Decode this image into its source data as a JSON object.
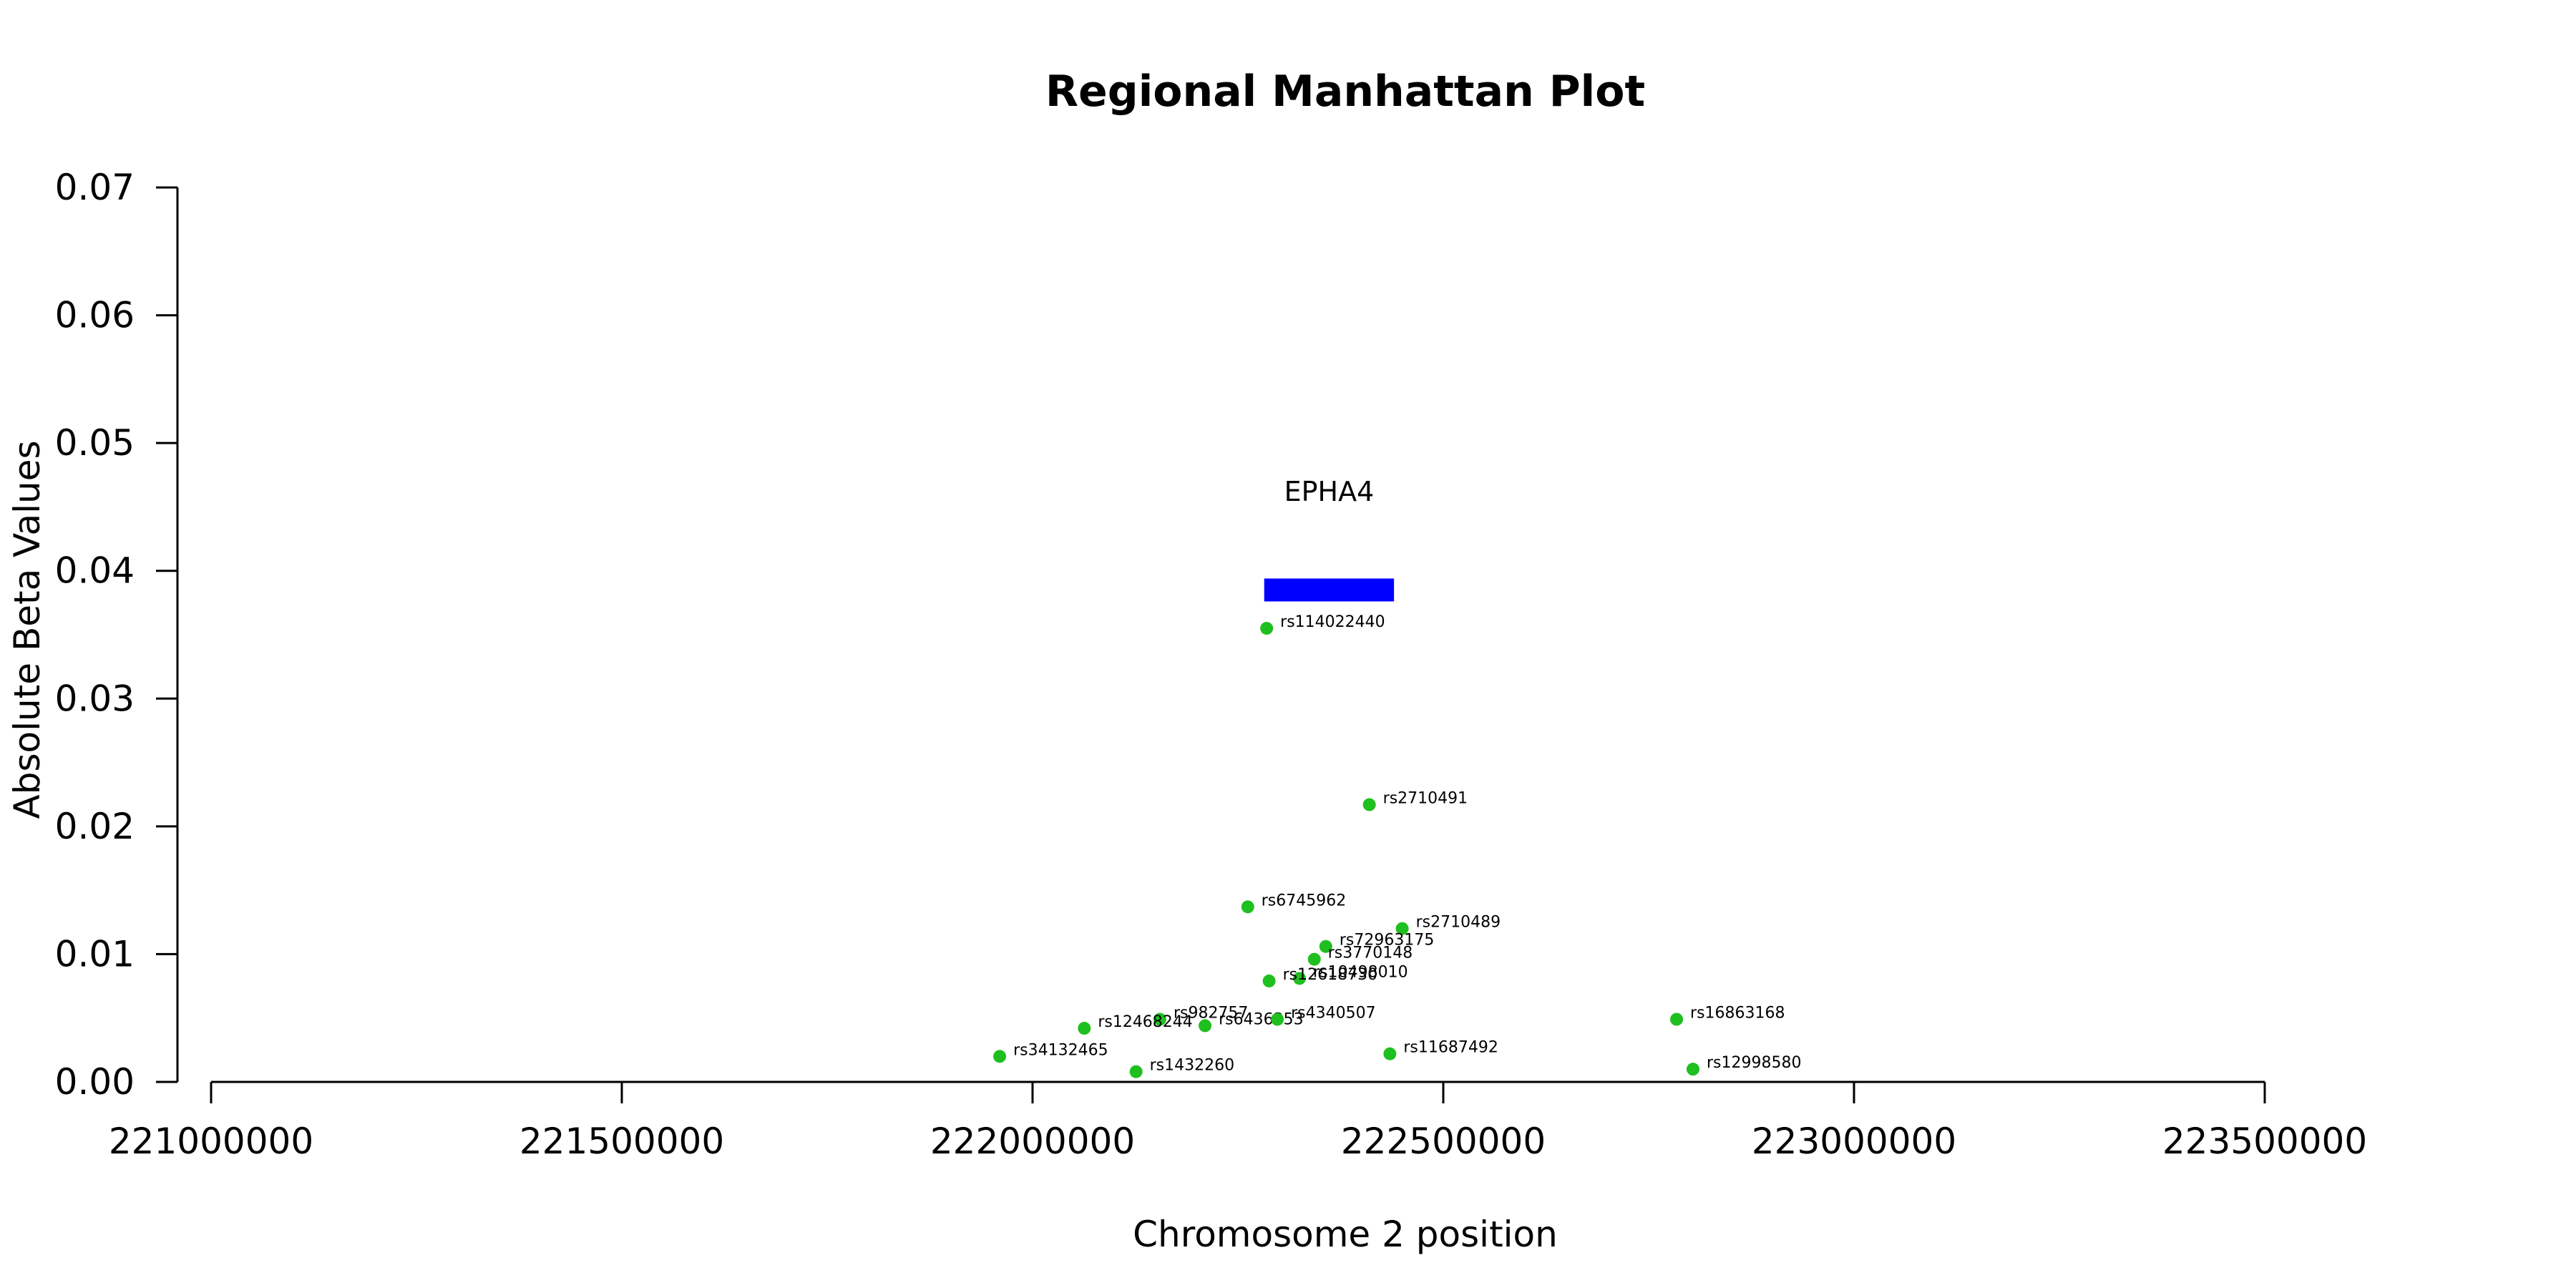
{
  "chart_data": {
    "type": "scatter",
    "title": "Regional Manhattan Plot",
    "xlabel": "Chromosome 2 position",
    "ylabel": "Absolute Beta Values",
    "xlim": [
      221000000,
      223500000
    ],
    "ylim": [
      0,
      0.07
    ],
    "xticks": [
      221000000,
      221500000,
      222000000,
      222500000,
      223000000,
      223500000
    ],
    "yticks": [
      0.0,
      0.01,
      0.02,
      0.03,
      0.04,
      0.05,
      0.06,
      0.07
    ],
    "xtick_labels": [
      "221000000",
      "221500000",
      "222000000",
      "222500000",
      "223000000",
      "223500000"
    ],
    "ytick_labels": [
      "0.00",
      "0.01",
      "0.02",
      "0.03",
      "0.04",
      "0.05",
      "0.06",
      "0.07"
    ],
    "grid": false,
    "point_color": "#1fbf1f",
    "points": [
      {
        "x": 222285000,
        "y": 0.0355,
        "label": "rs114022440"
      },
      {
        "x": 222410000,
        "y": 0.0217,
        "label": "rs2710491"
      },
      {
        "x": 222262000,
        "y": 0.0137,
        "label": "rs6745962"
      },
      {
        "x": 222450000,
        "y": 0.012,
        "label": "rs2710489"
      },
      {
        "x": 222357000,
        "y": 0.0106,
        "label": "rs72963175"
      },
      {
        "x": 222343000,
        "y": 0.0096,
        "label": "rs3770148"
      },
      {
        "x": 222325000,
        "y": 0.0081,
        "label": "rs10498010"
      },
      {
        "x": 222288000,
        "y": 0.0079,
        "label": "rs12618730"
      },
      {
        "x": 222155000,
        "y": 0.0049,
        "label": "rs982757"
      },
      {
        "x": 222210000,
        "y": 0.0044,
        "label": "rs6436353"
      },
      {
        "x": 222063000,
        "y": 0.0042,
        "label": "rs12468244"
      },
      {
        "x": 222298000,
        "y": 0.0049,
        "label": "rs4340507"
      },
      {
        "x": 221960000,
        "y": 0.002,
        "label": "rs34132465"
      },
      {
        "x": 222126000,
        "y": 0.0008,
        "label": "rs1432260"
      },
      {
        "x": 222435000,
        "y": 0.0022,
        "label": "rs11687492"
      },
      {
        "x": 222784000,
        "y": 0.0049,
        "label": "rs16863168"
      },
      {
        "x": 222804000,
        "y": 0.001,
        "label": "rs12998580"
      }
    ],
    "genes": [
      {
        "name": "EPHA4",
        "start": 222282000,
        "end": 222440000,
        "y": 0.0385,
        "color": "#0000ff"
      }
    ]
  }
}
